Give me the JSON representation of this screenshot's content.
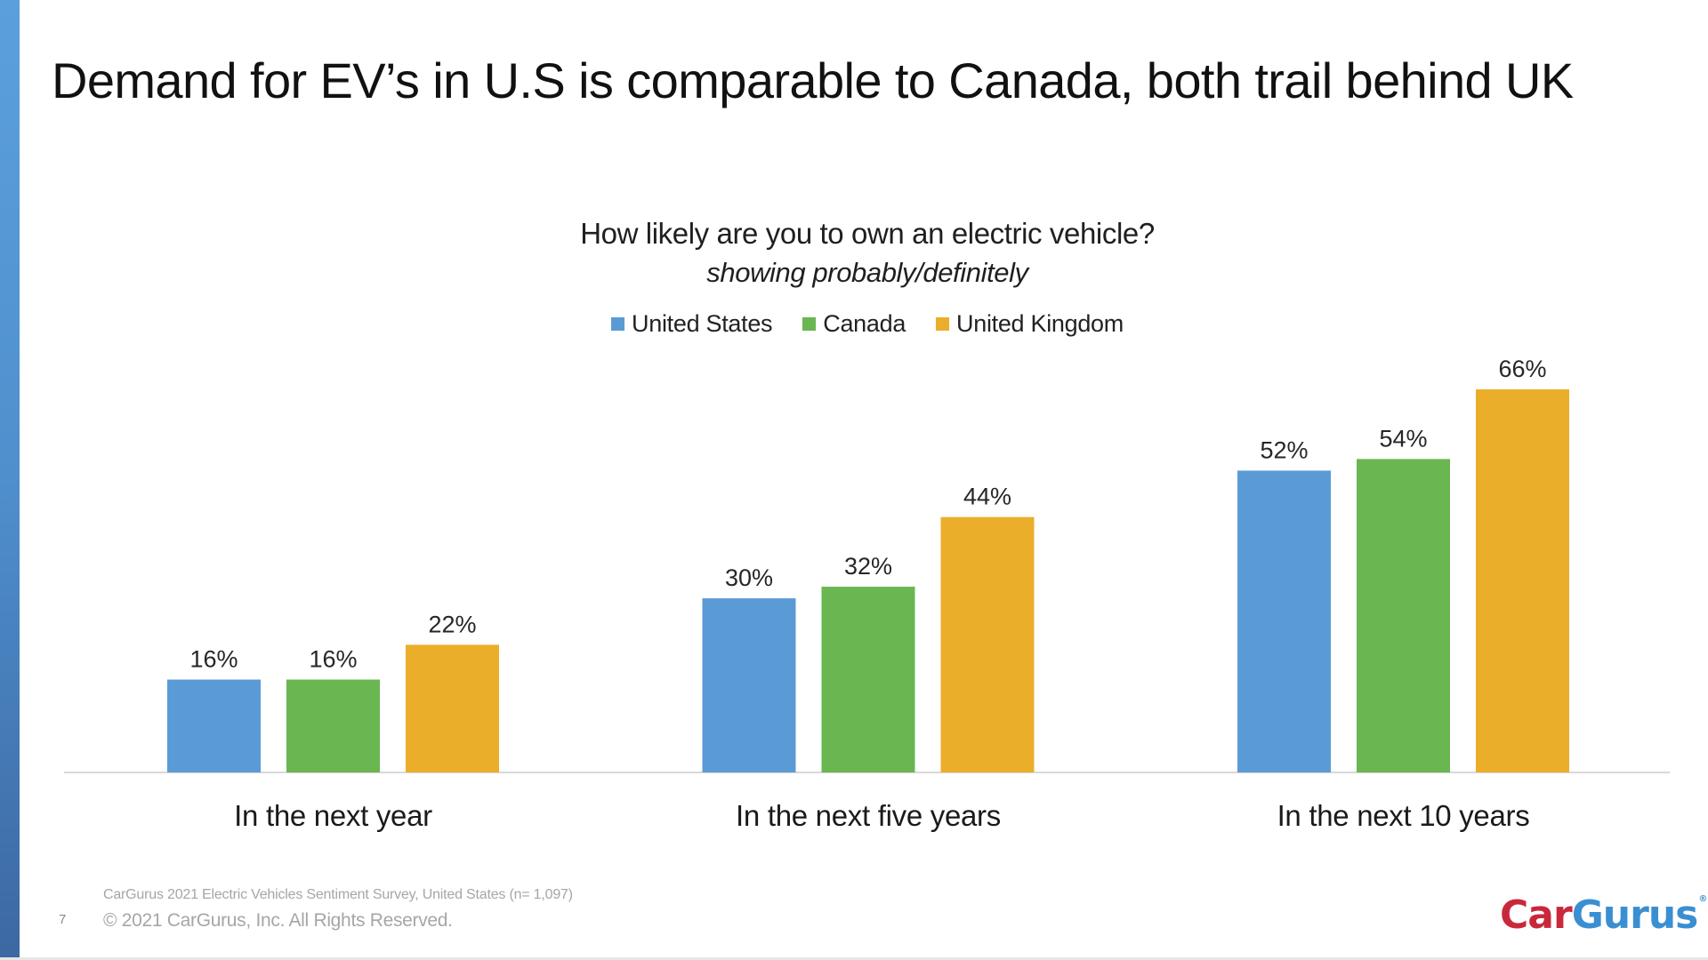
{
  "slide": {
    "title": "Demand for EV’s in U.S is comparable to Canada, both trail behind UK",
    "page_number": "7",
    "source_note": "CarGurus 2021 Electric Vehicles Sentiment Survey, United States (n= 1,097)",
    "copyright": "© 2021 CarGurus, Inc.  All Rights Reserved.",
    "logo": {
      "part1": "Car",
      "part2": "Gurus",
      "reg": "®",
      "part1_color": "#c9283b",
      "part2_color": "#3a8fd2"
    }
  },
  "chart_data": {
    "type": "bar",
    "title": "How likely are you to own an electric vehicle?",
    "subtitle": "showing probably/definitely",
    "xlabel": "",
    "ylabel": "",
    "ylim": [
      0,
      70
    ],
    "grid": false,
    "legend_position": "top-center",
    "value_format": "percent",
    "categories": [
      "In the next year",
      "In the next five years",
      "In the next 10 years"
    ],
    "series": [
      {
        "name": "United States",
        "color": "#5b9bd5",
        "values": [
          16,
          30,
          52
        ],
        "labels": [
          "16%",
          "30%",
          "52%"
        ]
      },
      {
        "name": "Canada",
        "color": "#6ab651",
        "values": [
          16,
          32,
          54
        ],
        "labels": [
          "16%",
          "32%",
          "54%"
        ]
      },
      {
        "name": "United Kingdom",
        "color": "#ebae2b",
        "values": [
          22,
          44,
          66
        ],
        "labels": [
          "22%",
          "44%",
          "66%"
        ]
      }
    ]
  }
}
